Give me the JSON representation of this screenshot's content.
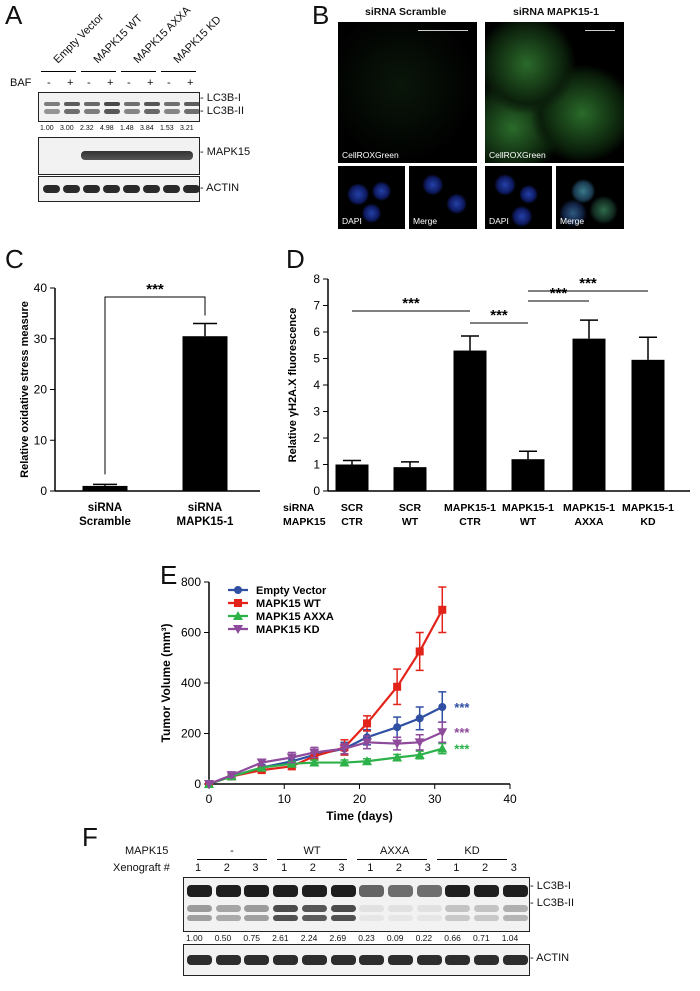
{
  "panel_letters": {
    "a": "A",
    "b": "B",
    "c": "C",
    "d": "D",
    "e": "E",
    "f": "F"
  },
  "panelA": {
    "lanes": [
      "Empty Vector",
      "MAPK15 WT",
      "MAPK15 AXXA",
      "MAPK15 KD"
    ],
    "baf_label": "BAF",
    "baf_signs": [
      "-",
      "+",
      "-",
      "+",
      "-",
      "+",
      "-",
      "+"
    ],
    "lc3_labels": [
      "- LC3B-I",
      "- LC3B-II"
    ],
    "ratios": [
      "1.00",
      "3.00",
      "2.32",
      "4.98",
      "1.48",
      "3.84",
      "1.53",
      "3.21"
    ],
    "mapk_label": "- MAPK15",
    "actin_label": "- ACTIN"
  },
  "panelB": {
    "titles": [
      "siRNA Scramble",
      "siRNA MAPK15-1"
    ],
    "stain": "CellROXGreen",
    "dapi": "DAPI",
    "merge": "Merge"
  },
  "chart_data": [
    {
      "type": "bar",
      "panel": "C",
      "categories": [
        "siRNA Scramble",
        "siRNA MAPK15-1"
      ],
      "category_lines": [
        [
          "siRNA",
          "Scramble"
        ],
        [
          "siRNA",
          "MAPK15-1"
        ]
      ],
      "values": [
        1,
        30.5
      ],
      "errors": [
        0.3,
        2.5
      ],
      "ylabel": "Relative oxidative stress measure",
      "ylim": [
        0,
        40
      ],
      "yticks": [
        0,
        10,
        20,
        30,
        40
      ],
      "significance": "***"
    },
    {
      "type": "bar",
      "panel": "D",
      "row_labels": [
        "siRNA",
        "MAPK15"
      ],
      "categories": [
        "SCR CTR",
        "SCR WT",
        "MAPK15-1 CTR",
        "MAPK15-1 WT",
        "MAPK15-1 AXXA",
        "MAPK15-1 KD"
      ],
      "category_lines": [
        [
          "SCR",
          "CTR"
        ],
        [
          "SCR",
          "WT"
        ],
        [
          "MAPK15-1",
          "CTR"
        ],
        [
          "MAPK15-1",
          "WT"
        ],
        [
          "MAPK15-1",
          "AXXA"
        ],
        [
          "MAPK15-1",
          "KD"
        ]
      ],
      "values": [
        1.0,
        0.9,
        5.3,
        1.2,
        5.75,
        4.95
      ],
      "errors": [
        0.15,
        0.2,
        0.55,
        0.3,
        0.7,
        0.85
      ],
      "ylabel": "Relative γH2A.X fluorescence",
      "ylim": [
        0,
        8
      ],
      "yticks": [
        0,
        1,
        2,
        3,
        4,
        5,
        6,
        7,
        8
      ],
      "significance": [
        "***",
        "***",
        "***",
        "***"
      ]
    },
    {
      "type": "line",
      "panel": "E",
      "x": [
        0,
        3,
        7,
        11,
        14,
        18,
        21,
        25,
        28,
        31
      ],
      "xlabel": "Time (days)",
      "ylabel": "Tumor Volume (mm³)",
      "xlim": [
        0,
        40
      ],
      "ylim": [
        0,
        800
      ],
      "xticks": [
        0,
        10,
        20,
        30,
        40
      ],
      "yticks": [
        0,
        200,
        400,
        600,
        800
      ],
      "series": [
        {
          "name": "Empty Vector",
          "color": "#2f4fa3",
          "marker": "circle",
          "values": [
            0,
            30,
            65,
            90,
            115,
            140,
            185,
            225,
            260,
            305
          ],
          "errors": [
            0,
            8,
            12,
            15,
            18,
            25,
            30,
            40,
            45,
            60
          ],
          "significance": "***"
        },
        {
          "name": "MAPK15 WT",
          "color": "#e2231a",
          "marker": "square",
          "values": [
            0,
            30,
            55,
            70,
            110,
            145,
            240,
            385,
            525,
            690
          ],
          "errors": [
            0,
            8,
            10,
            12,
            15,
            30,
            30,
            70,
            75,
            90
          ]
        },
        {
          "name": "MAPK15 AXXA",
          "color": "#2db24a",
          "marker": "triangle-up",
          "values": [
            0,
            30,
            65,
            80,
            85,
            85,
            90,
            105,
            115,
            140
          ],
          "errors": [
            0,
            6,
            8,
            10,
            10,
            10,
            10,
            12,
            15,
            20
          ],
          "significance": "***"
        },
        {
          "name": "MAPK15 KD",
          "color": "#8e4a9b",
          "marker": "triangle-down",
          "values": [
            0,
            35,
            85,
            105,
            125,
            140,
            165,
            160,
            165,
            205
          ],
          "errors": [
            0,
            8,
            12,
            20,
            20,
            20,
            25,
            25,
            30,
            40
          ],
          "significance": "***"
        }
      ]
    }
  ],
  "panelF": {
    "mapk_label": "MAPK15",
    "groups": [
      "-",
      "WT",
      "AXXA",
      "KD"
    ],
    "xeno_label": "Xenograft #",
    "xeno_nums": [
      "1",
      "2",
      "3",
      "1",
      "2",
      "3",
      "1",
      "2",
      "3",
      "1",
      "2",
      "3"
    ],
    "lc3_labels": [
      "- LC3B-I",
      "- LC3B-II"
    ],
    "ratios": [
      "1.00",
      "0.50",
      "0.75",
      "2.61",
      "2.24",
      "2.69",
      "0.23",
      "0.09",
      "0.22",
      "0.66",
      "0.71",
      "1.04"
    ],
    "actin_label": "- ACTIN"
  }
}
